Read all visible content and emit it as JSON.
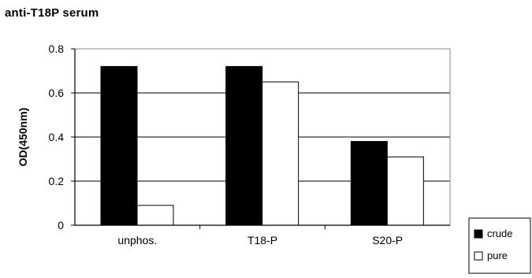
{
  "chart_data": {
    "type": "bar",
    "title": "anti-T18P serum",
    "xlabel": "",
    "ylabel": "OD(450nm)",
    "ylim": [
      0,
      0.8
    ],
    "yticks": [
      "0",
      "0.2",
      "0.4",
      "0.6",
      "0.8"
    ],
    "grid": true,
    "legend_position": "bottom-right",
    "categories": [
      "unphos.",
      "T18-P",
      "S20-P"
    ],
    "series": [
      {
        "name": "crude",
        "values": [
          0.72,
          0.72,
          0.38
        ],
        "color": "#000000"
      },
      {
        "name": "pure",
        "values": [
          0.09,
          0.65,
          0.31
        ],
        "color": "#ffffff"
      }
    ]
  }
}
